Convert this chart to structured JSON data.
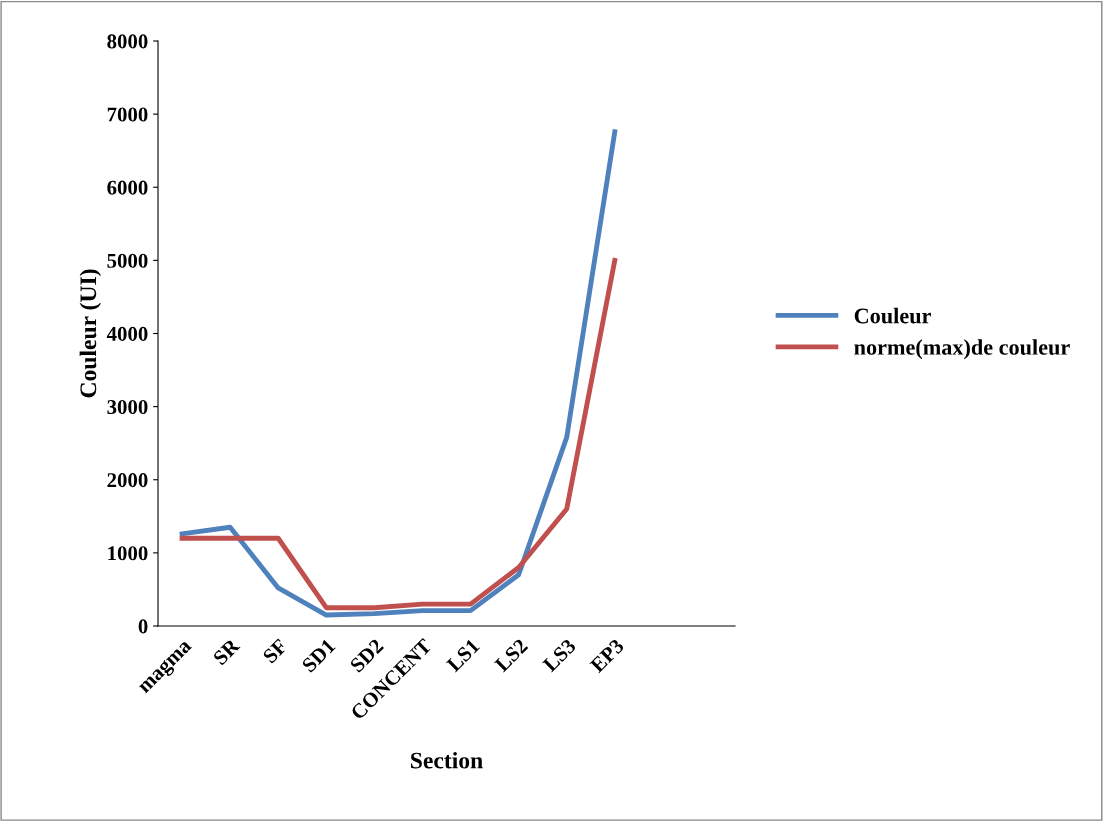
{
  "chart_data": {
    "type": "line",
    "xlabel": "Section",
    "ylabel": "Couleur (UI)",
    "categories": [
      "magma",
      "SR",
      "SF",
      "SD1",
      "SD2",
      "CONCENT",
      "LS1",
      "LS2",
      "LS3",
      "EP3",
      null,
      null
    ],
    "series": [
      {
        "name": "Couleur",
        "color": "#4f81bd",
        "values": [
          1260,
          1350,
          520,
          150,
          170,
          210,
          210,
          700,
          2580,
          6760,
          null,
          null
        ]
      },
      {
        "name": "norme(max)de couleur",
        "color": "#c0504d",
        "values": [
          1200,
          1200,
          1200,
          250,
          250,
          300,
          300,
          800,
          1600,
          5000,
          null,
          null
        ]
      }
    ],
    "ylim": [
      0,
      8000
    ],
    "yticks": [
      0,
      1000,
      2000,
      3000,
      4000,
      5000,
      6000,
      7000,
      8000
    ],
    "grid": false,
    "legend": "right",
    "marker": "none",
    "line_style": "solid"
  }
}
